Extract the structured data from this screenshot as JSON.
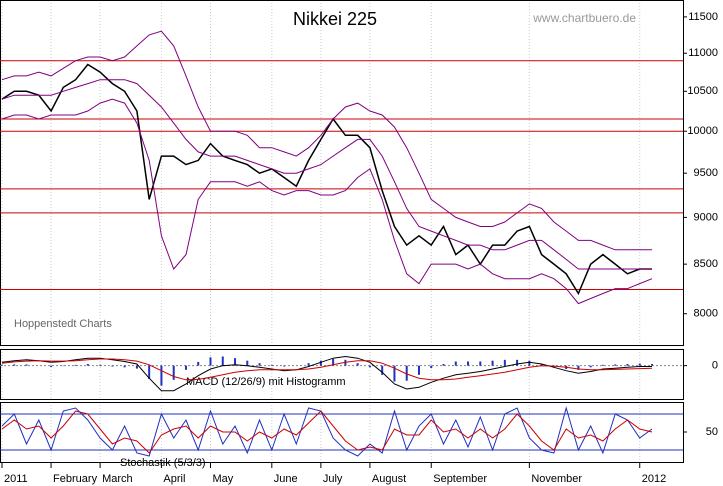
{
  "chart_data": [
    {
      "type": "line",
      "title": "Nikkei 225",
      "subtitle": "www.chartbuero.de",
      "annotation": "Hoppenstedt Charts",
      "log_scale": true,
      "ylim": [
        7700,
        11740
      ],
      "yticks": [
        8000,
        8500,
        9000,
        9500,
        10000,
        10500,
        11000,
        11500
      ],
      "levels": [
        10900,
        10150,
        10000,
        9320,
        9050,
        8240
      ],
      "level_color": "#cc0000",
      "series": [
        {
          "color": "#000000",
          "values": [
            10400,
            10500,
            10500,
            10450,
            10250,
            10550,
            10650,
            10850,
            10750,
            10600,
            10500,
            10250,
            9200,
            9700,
            9700,
            9600,
            9650,
            9850,
            9700,
            9650,
            9600,
            9500,
            9550,
            9450,
            9350,
            9650,
            9900,
            10150,
            9950,
            9950,
            9800,
            9300,
            8900,
            8700,
            8800,
            8700,
            8900,
            8600,
            8700,
            8500,
            8700,
            8700,
            8850,
            8900,
            8600,
            8500,
            8400,
            8200,
            8500,
            8600,
            8500,
            8400,
            8450,
            8450
          ]
        },
        {
          "color": "#800080",
          "values": [
            10650,
            10700,
            10700,
            10750,
            10700,
            10800,
            10900,
            10950,
            10950,
            10900,
            10950,
            11100,
            11250,
            11300,
            11100,
            10700,
            10300,
            10000,
            10000,
            10000,
            9950,
            9800,
            9800,
            9750,
            9700,
            9800,
            9950,
            10150,
            10300,
            10350,
            10250,
            10200,
            10050,
            9800,
            9500,
            9200,
            9100,
            9000,
            8950,
            8900,
            8900,
            8950,
            9050,
            9150,
            9100,
            8950,
            8850,
            8750,
            8750,
            8700,
            8650,
            8650,
            8650,
            8650
          ]
        },
        {
          "color": "#800080",
          "values": [
            10400,
            10450,
            10450,
            10450,
            10450,
            10500,
            10550,
            10600,
            10650,
            10650,
            10650,
            10600,
            10450,
            10300,
            10100,
            9900,
            9750,
            9700,
            9700,
            9700,
            9650,
            9600,
            9550,
            9500,
            9500,
            9550,
            9600,
            9700,
            9800,
            9900,
            9900,
            9700,
            9400,
            9100,
            8900,
            8850,
            8800,
            8750,
            8700,
            8700,
            8650,
            8650,
            8700,
            8750,
            8750,
            8650,
            8550,
            8450,
            8450,
            8450,
            8450,
            8450,
            8450,
            8450
          ]
        },
        {
          "color": "#800080",
          "values": [
            10150,
            10200,
            10200,
            10150,
            10200,
            10200,
            10200,
            10250,
            10350,
            10400,
            10350,
            10100,
            9650,
            8800,
            8450,
            8600,
            9200,
            9400,
            9400,
            9400,
            9350,
            9400,
            9300,
            9250,
            9300,
            9300,
            9250,
            9250,
            9300,
            9450,
            9550,
            9200,
            8750,
            8400,
            8300,
            8500,
            8500,
            8500,
            8450,
            8500,
            8400,
            8350,
            8350,
            8350,
            8400,
            8350,
            8250,
            8100,
            8150,
            8200,
            8250,
            8250,
            8300,
            8350
          ]
        }
      ]
    },
    {
      "type": "line",
      "title": "MACD (12/26/9) mit Histogramm",
      "ylim": [
        -400,
        200
      ],
      "yticks": [
        0
      ],
      "series": [
        {
          "type": "bar",
          "color": "#2030c0",
          "values": [
            10,
            15,
            15,
            0,
            -15,
            -5,
            10,
            20,
            10,
            -10,
            -20,
            -35,
            -160,
            -240,
            -170,
            -50,
            45,
            100,
            110,
            90,
            60,
            30,
            10,
            -10,
            0,
            30,
            60,
            80,
            70,
            30,
            -20,
            -110,
            -190,
            -180,
            -110,
            -30,
            20,
            50,
            50,
            50,
            60,
            70,
            70,
            60,
            20,
            -15,
            -40,
            -50,
            -20,
            10,
            15,
            20,
            25,
            20
          ]
        },
        {
          "color": "#000000",
          "values": [
            40,
            60,
            70,
            60,
            40,
            50,
            70,
            90,
            90,
            70,
            50,
            20,
            -150,
            -300,
            -300,
            -220,
            -120,
            -40,
            0,
            10,
            0,
            -20,
            -40,
            -60,
            -50,
            -10,
            40,
            90,
            110,
            90,
            40,
            -80,
            -220,
            -280,
            -260,
            -200,
            -150,
            -110,
            -90,
            -70,
            -40,
            -10,
            20,
            40,
            20,
            -20,
            -60,
            -90,
            -70,
            -40,
            -30,
            -20,
            -10,
            -10
          ]
        },
        {
          "color": "#cc0000",
          "values": [
            30,
            45,
            55,
            60,
            55,
            55,
            60,
            70,
            80,
            80,
            70,
            55,
            10,
            -60,
            -130,
            -170,
            -165,
            -140,
            -110,
            -80,
            -60,
            -50,
            -50,
            -50,
            -50,
            -40,
            -20,
            10,
            40,
            60,
            60,
            30,
            -30,
            -100,
            -150,
            -170,
            -170,
            -160,
            -140,
            -120,
            -100,
            -80,
            -50,
            -20,
            0,
            -5,
            -20,
            -40,
            -50,
            -50,
            -45,
            -40,
            -35,
            -30
          ]
        }
      ]
    },
    {
      "type": "line",
      "title": "Stochastik (5/3/3)",
      "ylim": [
        0,
        100
      ],
      "yticks": [
        50
      ],
      "levels": [
        20,
        80
      ],
      "level_color": "#2030c0",
      "categories": [
        "2011",
        null,
        null,
        null,
        "February",
        null,
        null,
        null,
        "March",
        null,
        null,
        null,
        null,
        "April",
        null,
        null,
        null,
        "May",
        null,
        null,
        null,
        null,
        "June",
        null,
        null,
        null,
        "July",
        null,
        null,
        null,
        "August",
        null,
        null,
        null,
        null,
        "September",
        null,
        null,
        null,
        null,
        null,
        null,
        null,
        "November",
        null,
        null,
        null,
        null,
        null,
        null,
        null,
        null,
        "2012",
        null
      ],
      "series": [
        {
          "color": "#2030c0",
          "values": [
            60,
            80,
            30,
            70,
            20,
            85,
            90,
            70,
            40,
            20,
            60,
            15,
            10,
            80,
            40,
            70,
            20,
            85,
            30,
            60,
            15,
            70,
            20,
            80,
            30,
            90,
            85,
            40,
            20,
            10,
            30,
            15,
            85,
            20,
            60,
            80,
            30,
            70,
            25,
            75,
            20,
            80,
            90,
            40,
            20,
            15,
            90,
            20,
            60,
            15,
            80,
            70,
            40,
            55
          ]
        },
        {
          "color": "#cc0000",
          "values": [
            55,
            70,
            55,
            60,
            40,
            60,
            85,
            80,
            55,
            30,
            40,
            35,
            15,
            45,
            55,
            60,
            40,
            60,
            50,
            50,
            35,
            50,
            40,
            55,
            45,
            65,
            85,
            60,
            35,
            20,
            25,
            20,
            55,
            45,
            45,
            70,
            50,
            55,
            40,
            55,
            40,
            55,
            80,
            60,
            35,
            20,
            55,
            40,
            45,
            35,
            55,
            70,
            55,
            50
          ]
        }
      ]
    }
  ]
}
